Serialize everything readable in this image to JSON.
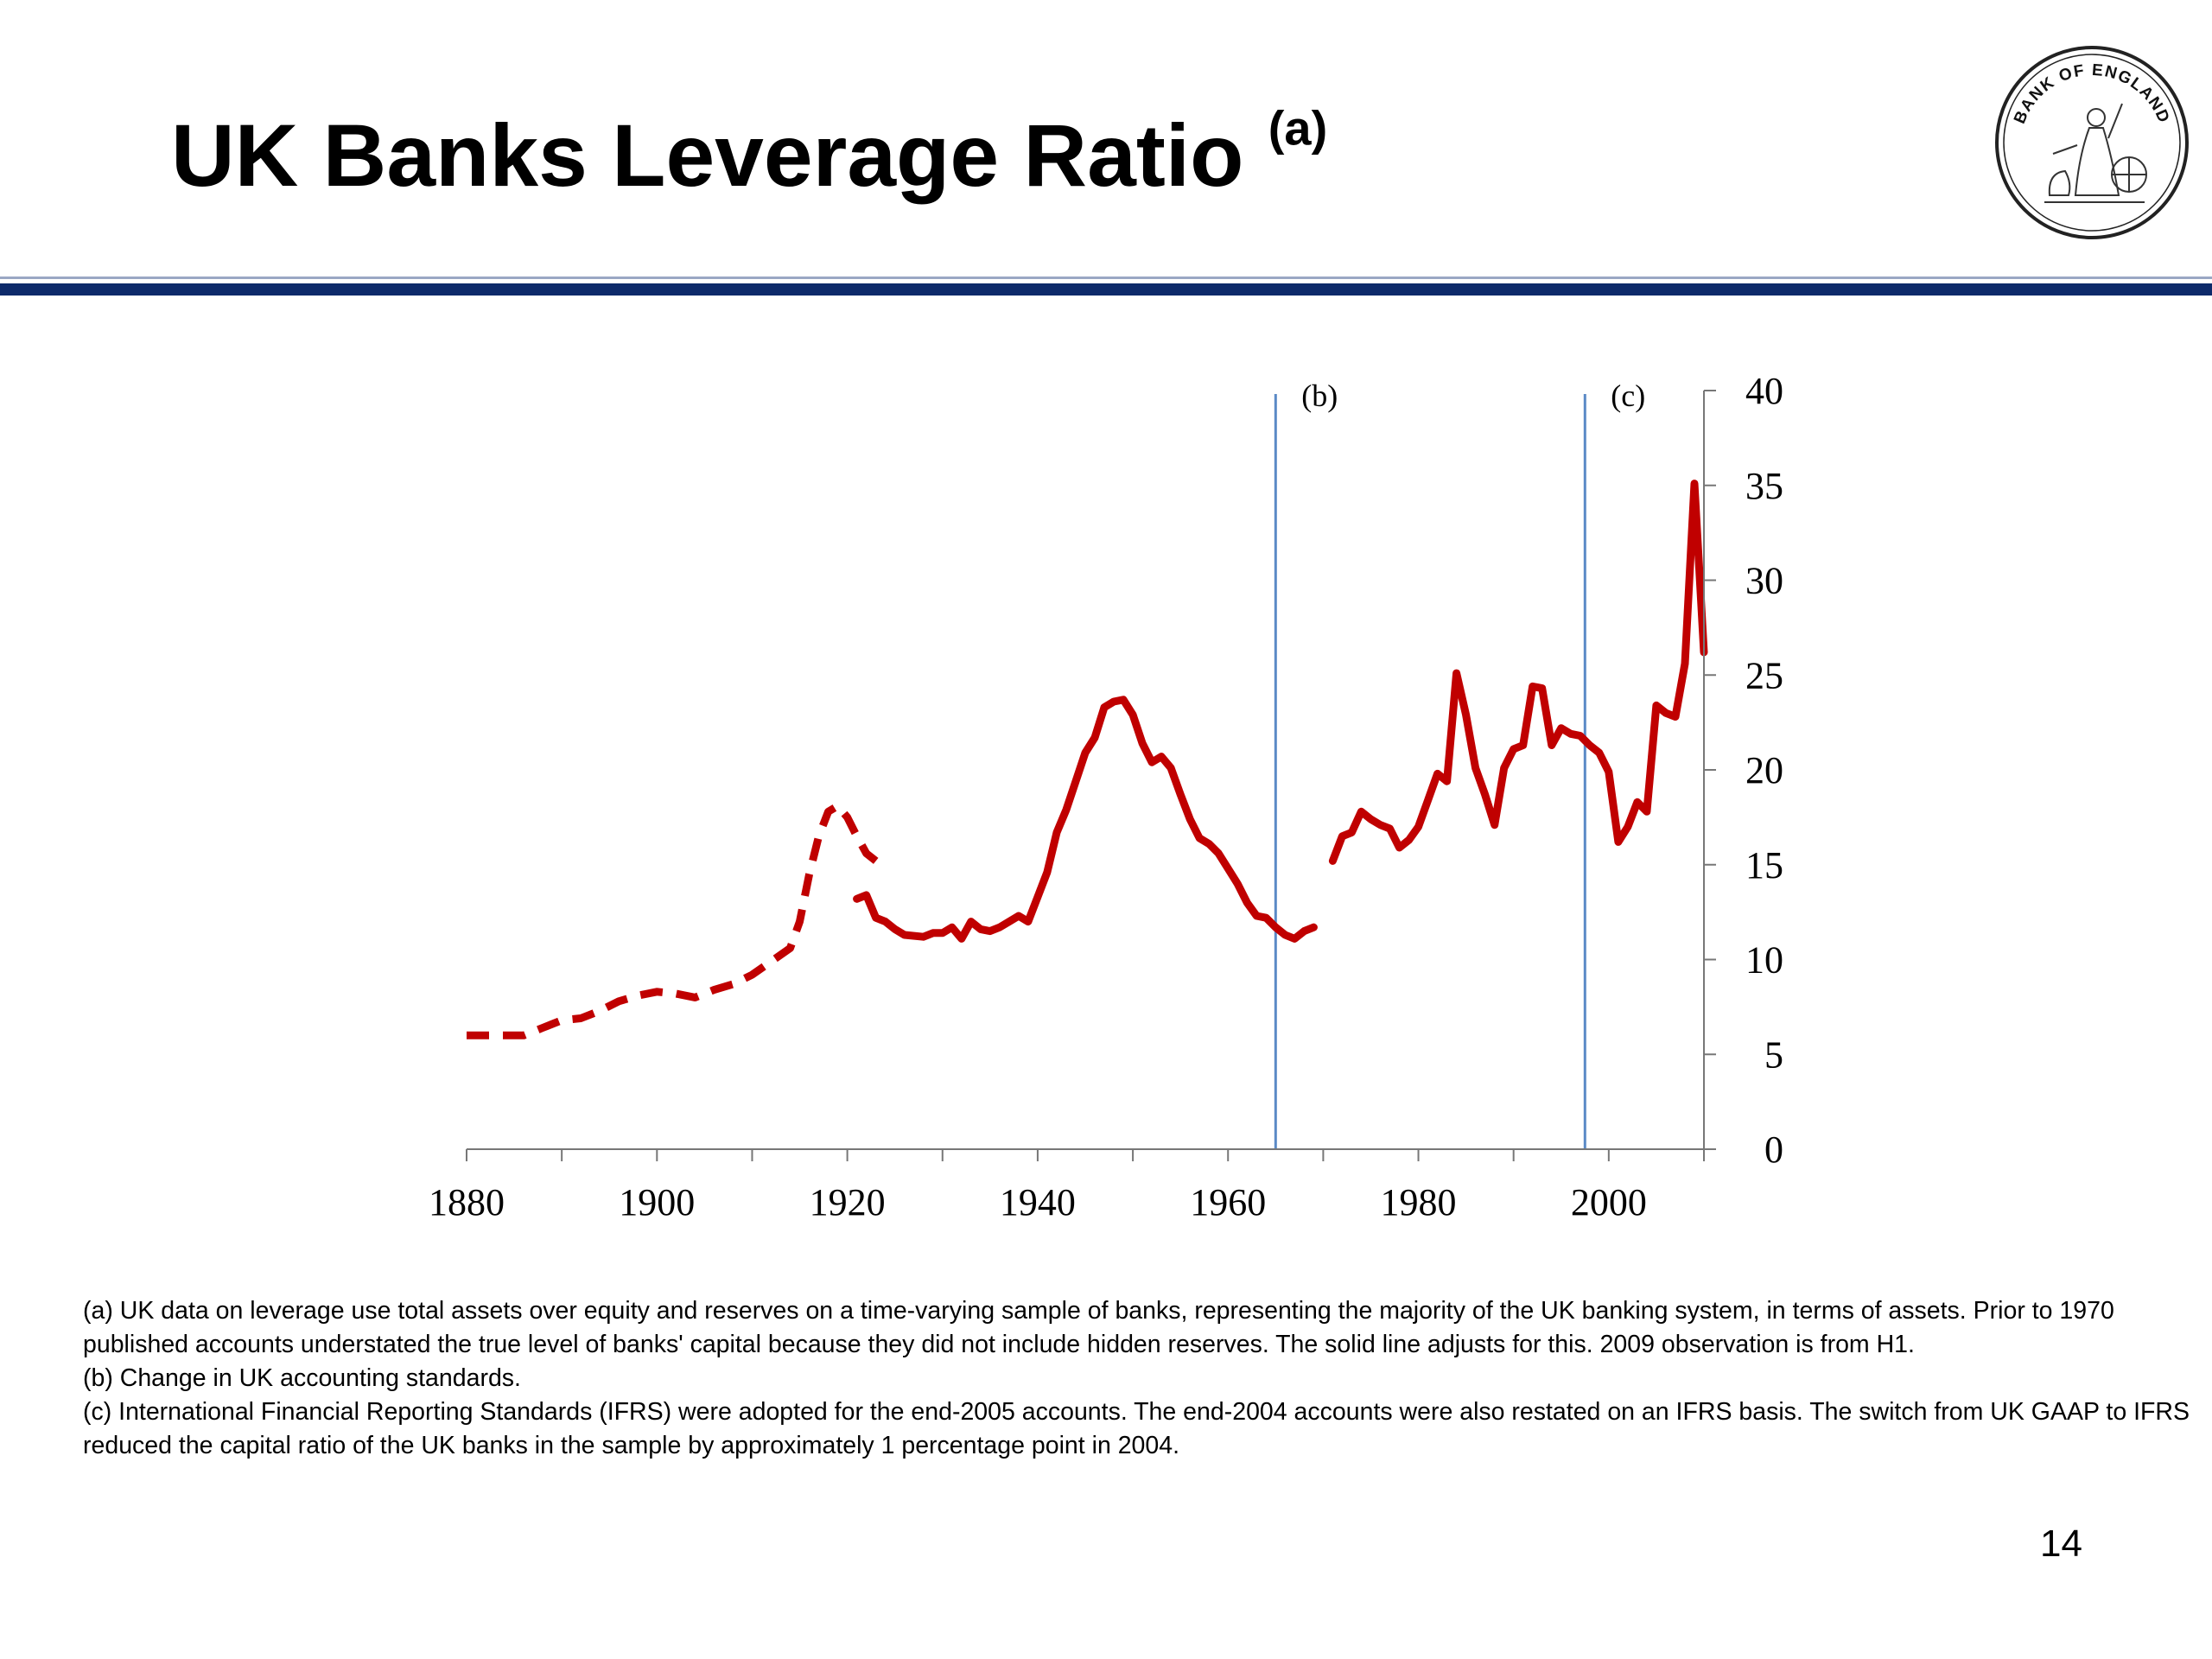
{
  "slide": {
    "title": "UK Banks Leverage Ratio",
    "title_note": "(a)",
    "page_number": "14",
    "logo_text": "BANK OF ENGLAND",
    "colors": {
      "title_rule": "#0d2a6a",
      "series": "#c00000",
      "event_line": "#5b8ac6"
    }
  },
  "chart_data": {
    "type": "line",
    "title": "",
    "xlabel": "",
    "ylabel": "",
    "xlim": [
      1880,
      2010
    ],
    "ylim": [
      0,
      40
    ],
    "x_ticks": [
      "1880",
      "1900",
      "1920",
      "1940",
      "1960",
      "1980",
      "2000"
    ],
    "y_ticks": [
      "0",
      "5",
      "10",
      "15",
      "20",
      "25",
      "30",
      "35",
      "40"
    ],
    "y_axis_position": "right",
    "grid": false,
    "legend": "none",
    "series": [
      {
        "style": "dashed",
        "points": [
          [
            1880,
            6
          ],
          [
            1882,
            6
          ],
          [
            1884,
            6
          ],
          [
            1886,
            6
          ],
          [
            1888,
            6.4
          ],
          [
            1890,
            6.8
          ],
          [
            1892,
            6.9
          ],
          [
            1894,
            7.3
          ],
          [
            1896,
            7.8
          ],
          [
            1898,
            8.1
          ],
          [
            1900,
            8.3
          ],
          [
            1902,
            8.2
          ],
          [
            1904,
            8
          ],
          [
            1906,
            8.4
          ],
          [
            1908,
            8.7
          ],
          [
            1910,
            9.2
          ],
          [
            1912,
            9.9
          ],
          [
            1914,
            10.6
          ],
          [
            1915,
            12
          ],
          [
            1916,
            14.5
          ],
          [
            1917,
            16.5
          ],
          [
            1918,
            17.8
          ],
          [
            1919,
            18.1
          ],
          [
            1920,
            17.5
          ],
          [
            1921,
            16.5
          ],
          [
            1922,
            15.6
          ],
          [
            1923,
            15.2
          ]
        ]
      },
      {
        "style": "solid",
        "points": [
          [
            1921,
            13.2
          ],
          [
            1922,
            13.4
          ],
          [
            1923,
            12.2
          ],
          [
            1924,
            12
          ],
          [
            1925,
            11.6
          ],
          [
            1926,
            11.3
          ],
          [
            1928,
            11.2
          ],
          [
            1929,
            11.4
          ],
          [
            1930,
            11.4
          ],
          [
            1931,
            11.7
          ],
          [
            1932,
            11.1
          ],
          [
            1933,
            12
          ],
          [
            1934,
            11.6
          ],
          [
            1935,
            11.5
          ],
          [
            1936,
            11.7
          ],
          [
            1937,
            12
          ],
          [
            1938,
            12.3
          ],
          [
            1939,
            12
          ],
          [
            1940,
            13.3
          ],
          [
            1941,
            14.6
          ],
          [
            1942,
            16.7
          ],
          [
            1943,
            17.9
          ],
          [
            1944,
            19.4
          ],
          [
            1945,
            20.9
          ],
          [
            1946,
            21.7
          ],
          [
            1947,
            23.3
          ],
          [
            1948,
            23.6
          ],
          [
            1949,
            23.7
          ],
          [
            1950,
            22.9
          ],
          [
            1951,
            21.4
          ],
          [
            1952,
            20.4
          ],
          [
            1953,
            20.7
          ],
          [
            1954,
            20.1
          ],
          [
            1955,
            18.7
          ],
          [
            1956,
            17.4
          ],
          [
            1957,
            16.4
          ],
          [
            1958,
            16.1
          ],
          [
            1959,
            15.6
          ],
          [
            1960,
            14.8
          ],
          [
            1961,
            14
          ],
          [
            1962,
            13
          ],
          [
            1963,
            12.3
          ],
          [
            1964,
            12.2
          ],
          [
            1965,
            11.7
          ],
          [
            1966,
            11.3
          ],
          [
            1967,
            11.1
          ],
          [
            1968,
            11.5
          ],
          [
            1969,
            11.7
          ]
        ]
      },
      {
        "style": "solid",
        "points": [
          [
            1971,
            15.2
          ],
          [
            1972,
            16.5
          ],
          [
            1973,
            16.7
          ],
          [
            1974,
            17.8
          ],
          [
            1975,
            17.4
          ],
          [
            1976,
            17.1
          ],
          [
            1977,
            16.9
          ],
          [
            1978,
            15.9
          ],
          [
            1979,
            16.3
          ],
          [
            1980,
            17
          ],
          [
            1981,
            18.4
          ],
          [
            1982,
            19.8
          ],
          [
            1983,
            19.4
          ],
          [
            1984,
            25.1
          ],
          [
            1985,
            22.9
          ],
          [
            1986,
            20.1
          ],
          [
            1987,
            18.7
          ],
          [
            1988,
            17.1
          ],
          [
            1989,
            20.1
          ],
          [
            1990,
            21.1
          ],
          [
            1991,
            21.3
          ],
          [
            1992,
            24.4
          ],
          [
            1993,
            24.3
          ],
          [
            1994,
            21.3
          ],
          [
            1995,
            22.2
          ],
          [
            1996,
            21.9
          ],
          [
            1997,
            21.8
          ],
          [
            1998,
            21.3
          ],
          [
            1999,
            20.9
          ],
          [
            2000,
            19.9
          ],
          [
            2001,
            16.2
          ],
          [
            2002,
            17
          ],
          [
            2003,
            18.3
          ],
          [
            2004,
            17.8
          ],
          [
            2005,
            23.4
          ],
          [
            2006,
            23
          ],
          [
            2007,
            22.8
          ],
          [
            2008,
            25.6
          ],
          [
            2009,
            35.1
          ],
          [
            2010,
            26.2
          ]
        ]
      }
    ],
    "annotations": [
      {
        "label": "(b)",
        "x": 1965
      },
      {
        "label": "(c)",
        "x": 1997.5
      }
    ]
  },
  "footnotes": [
    "(a)  UK data on leverage use total assets over equity and reserves on a time-varying sample of banks, representing the majority of the UK banking system, in terms of assets.  Prior to 1970 published accounts understated the true level of banks' capital because they did not include hidden reserves.  The solid line adjusts for this.  2009 observation is from H1.",
    "(b)  Change in UK accounting standards.",
    "(c)  International Financial Reporting Standards (IFRS) were adopted for the end-2005 accounts.  The end-2004 accounts were also restated on an IFRS basis.  The switch from UK GAAP to IFRS reduced the capital ratio of the UK banks in the sample by approximately 1 percentage point in 2004."
  ]
}
